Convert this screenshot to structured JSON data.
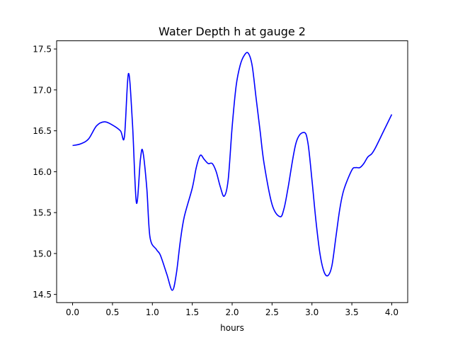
{
  "chart_data": {
    "type": "line",
    "title": "Water Depth h at gauge 2",
    "xlabel": "hours",
    "ylabel": "",
    "xlim": [
      -0.2,
      4.2
    ],
    "ylim": [
      14.4,
      17.6
    ],
    "xticks": [
      "0.0",
      "0.5",
      "1.0",
      "1.5",
      "2.0",
      "2.5",
      "3.0",
      "3.5",
      "4.0"
    ],
    "yticks": [
      "14.5",
      "15.0",
      "15.5",
      "16.0",
      "16.5",
      "17.0",
      "17.5"
    ],
    "grid": false,
    "legend": "none",
    "series": [
      {
        "color": "#0000ff",
        "x": [
          0.0,
          0.1,
          0.2,
          0.3,
          0.4,
          0.5,
          0.6,
          0.65,
          0.7,
          0.75,
          0.8,
          0.85,
          0.88,
          0.93,
          0.97,
          1.05,
          1.1,
          1.18,
          1.25,
          1.3,
          1.35,
          1.4,
          1.5,
          1.55,
          1.6,
          1.65,
          1.7,
          1.75,
          1.8,
          1.85,
          1.9,
          1.95,
          2.0,
          2.05,
          2.1,
          2.15,
          2.2,
          2.25,
          2.3,
          2.35,
          2.4,
          2.5,
          2.6,
          2.65,
          2.7,
          2.8,
          2.9,
          2.95,
          3.0,
          3.05,
          3.1,
          3.15,
          3.2,
          3.25,
          3.3,
          3.35,
          3.4,
          3.5,
          3.55,
          3.6,
          3.65,
          3.7,
          3.75,
          3.8,
          3.9,
          4.0
        ],
        "y": [
          16.32,
          16.34,
          16.4,
          16.56,
          16.61,
          16.57,
          16.5,
          16.43,
          17.2,
          16.6,
          15.62,
          16.15,
          16.25,
          15.8,
          15.2,
          15.05,
          14.98,
          14.75,
          14.55,
          14.75,
          15.15,
          15.45,
          15.8,
          16.05,
          16.2,
          16.15,
          16.1,
          16.1,
          16.0,
          15.82,
          15.7,
          15.9,
          16.55,
          17.05,
          17.3,
          17.42,
          17.45,
          17.3,
          16.9,
          16.5,
          16.1,
          15.6,
          15.45,
          15.55,
          15.8,
          16.35,
          16.48,
          16.35,
          15.9,
          15.4,
          15.0,
          14.78,
          14.73,
          14.85,
          15.2,
          15.55,
          15.78,
          16.02,
          16.05,
          16.05,
          16.1,
          16.18,
          16.22,
          16.3,
          16.5,
          16.7
        ]
      }
    ]
  }
}
